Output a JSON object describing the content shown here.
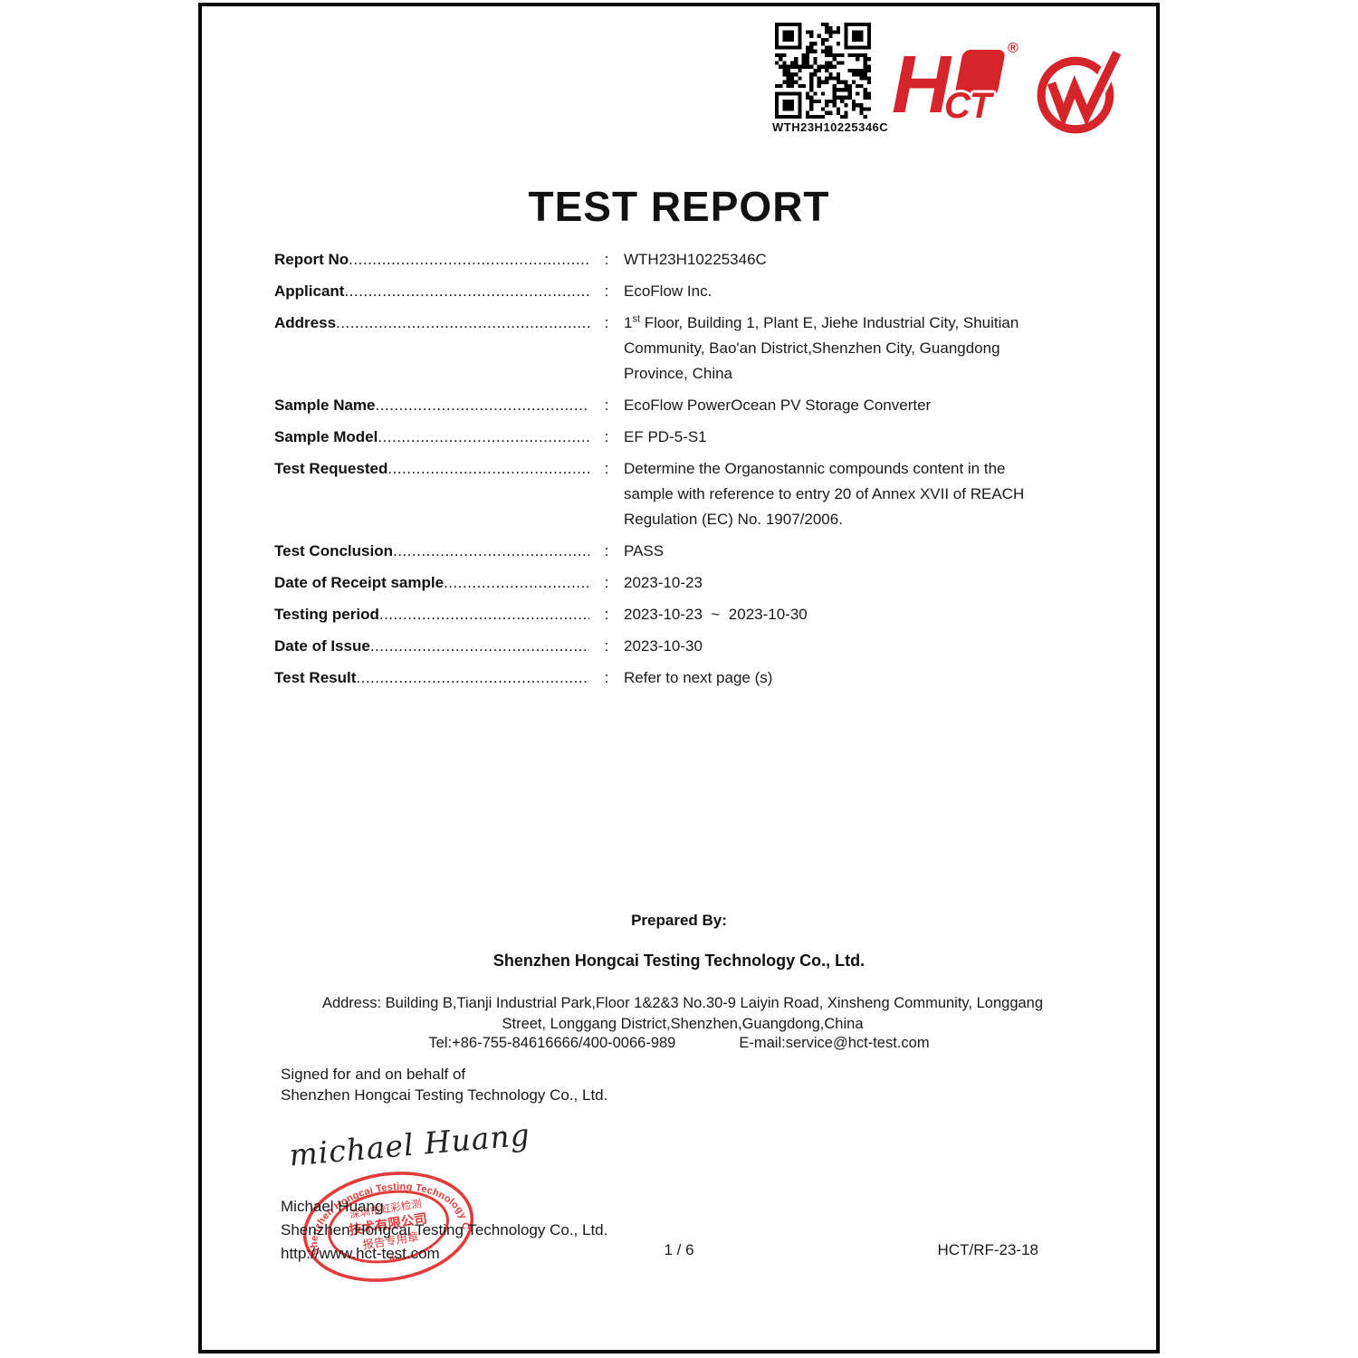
{
  "colors": {
    "brand_red": "#d6242b",
    "stamp_red": "#e02b2b",
    "ink": "#1a1a1a"
  },
  "header": {
    "qr_label": "WTH23H10225346C",
    "registered_mark": "®",
    "hct_logo_h": "H",
    "hct_logo_ct": "CT"
  },
  "title": "TEST REPORT",
  "fields": [
    {
      "label": "Report No",
      "value": "WTH23H10225346C"
    },
    {
      "label": "Applicant",
      "value": "EcoFlow Inc."
    },
    {
      "label": "Address",
      "value_pre": "1",
      "value_sup": "st",
      "value_rest": " Floor, Building 1, Plant E, Jiehe Industrial City, Shuitian\nCommunity, Bao'an District,Shenzhen City, Guangdong\nProvince, China"
    },
    {
      "label": "Sample Name",
      "value": "EcoFlow PowerOcean PV Storage Converter"
    },
    {
      "label": "Sample Model",
      "value": "EF PD-5-S1"
    },
    {
      "label": "Test Requested",
      "value": "Determine the Organostannic compounds content in the\nsample with reference to entry 20 of Annex XVII of REACH\nRegulation (EC) No. 1907/2006."
    },
    {
      "label": "Test Conclusion",
      "value": "PASS"
    },
    {
      "label": "Date of Receipt sample",
      "value": "2023-10-23"
    },
    {
      "label": "Testing period",
      "value": "2023-10-23  ~  2023-10-30"
    },
    {
      "label": "Date of Issue",
      "value": "2023-10-30"
    },
    {
      "label": "Test Result",
      "value": "Refer to next page (s)"
    }
  ],
  "prepared_by": {
    "heading": "Prepared By:",
    "company": "Shenzhen Hongcai Testing Technology Co., Ltd.",
    "address": "Address: Building B,Tianji Industrial Park,Floor 1&2&3 No.30-9 Laiyin Road, Xinsheng Community, Longgang\nStreet, Longgang District,Shenzhen,Guangdong,China",
    "tel": "Tel:+86-755-84616666/400-0066-989",
    "email": "E-mail:service@hct-test.com"
  },
  "signed": {
    "line1": "Signed for and on behalf of",
    "line2": "Shenzhen Hongcai Testing Technology Co., Ltd.",
    "signature_text": "michael Huang",
    "signer_name": "Michael Huang",
    "signer_company": "Shenzhen Hongcai Testing Technology Co., Ltd.",
    "website": "http://www.hct-test.com"
  },
  "stamp": {
    "ring_text": "Shenzhen Hongcai Testing Technology Co.,Ltd",
    "cn_line1": "深圳市虹彩检测",
    "cn_line2": "技术有限公司",
    "cn_line3": "报告专用章",
    "star": "※"
  },
  "footer": {
    "page_num": "1 / 6",
    "doc_code": "HCT/RF-23-18"
  }
}
